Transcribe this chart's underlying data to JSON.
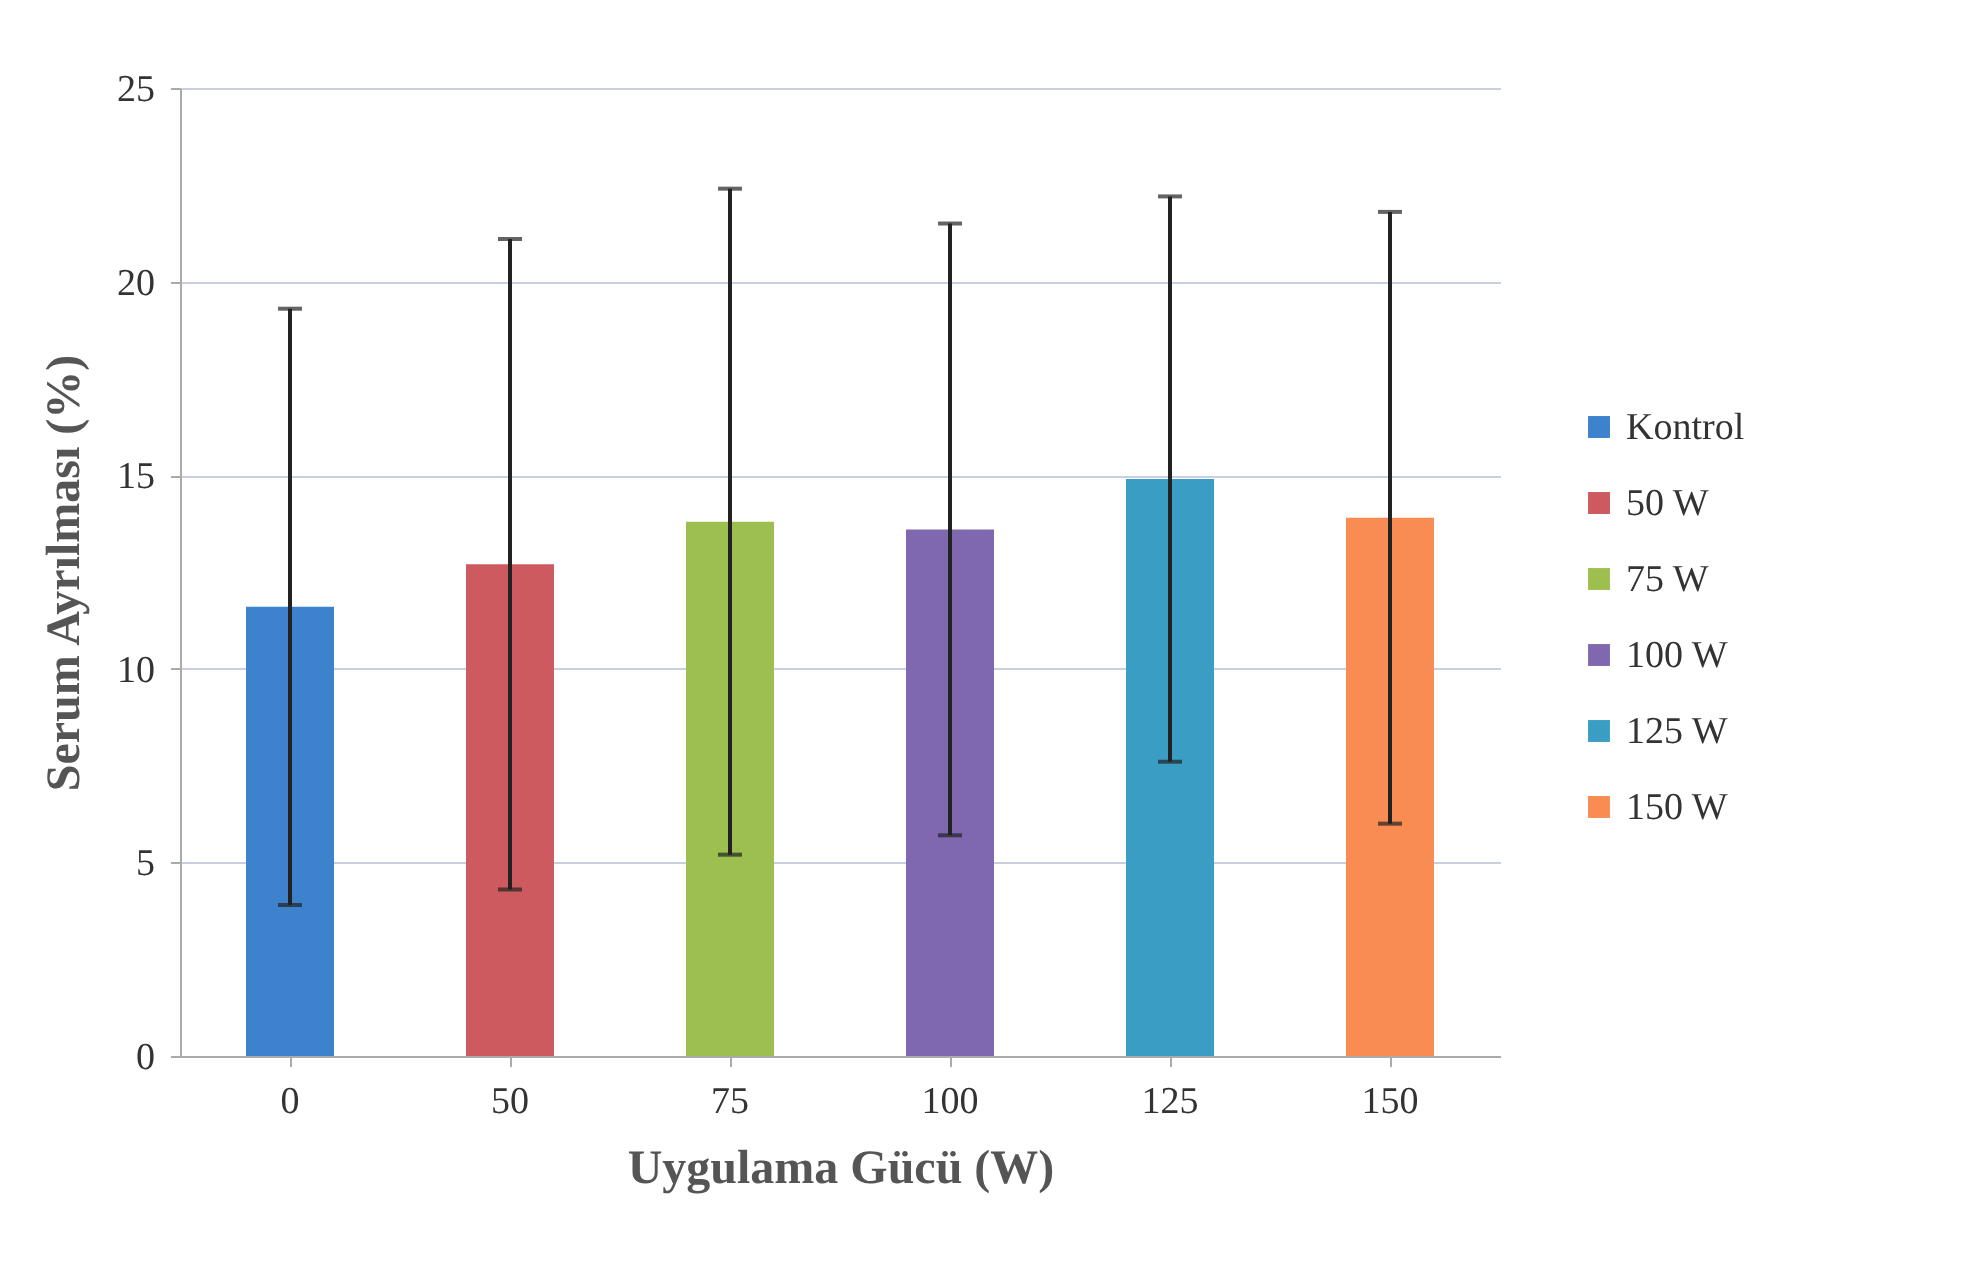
{
  "chart_data": {
    "type": "bar",
    "xlabel": "Uygulama Gücü (W)",
    "ylabel": "Serum Ayrılması (%)",
    "categories": [
      "0",
      "50",
      "75",
      "100",
      "125",
      "150"
    ],
    "series": [
      {
        "name": "Kontrol",
        "color": "#3c82cc",
        "values": [
          11.6,
          null,
          null,
          null,
          null,
          null
        ],
        "errors": [
          7.7,
          null,
          null,
          null,
          null,
          null
        ]
      },
      {
        "name": "50 W",
        "color": "#cc5a5e",
        "values": [
          null,
          12.7,
          null,
          null,
          null,
          null
        ],
        "errors": [
          null,
          8.4,
          null,
          null,
          null,
          null
        ]
      },
      {
        "name": "75 W",
        "color": "#9cbf50",
        "values": [
          null,
          null,
          13.8,
          null,
          null,
          null
        ],
        "errors": [
          null,
          null,
          8.6,
          null,
          null,
          null
        ]
      },
      {
        "name": "100 W",
        "color": "#8068b0",
        "values": [
          null,
          null,
          null,
          13.6,
          null,
          null
        ],
        "errors": [
          null,
          null,
          null,
          7.9,
          null,
          null
        ]
      },
      {
        "name": "125 W",
        "color": "#3a9ec4",
        "values": [
          null,
          null,
          null,
          null,
          14.9,
          null
        ],
        "errors": [
          null,
          null,
          null,
          null,
          7.3,
          null
        ]
      },
      {
        "name": "150 W",
        "color": "#f88c52",
        "values": [
          null,
          null,
          null,
          null,
          null,
          13.9
        ],
        "errors": [
          null,
          null,
          null,
          null,
          null,
          7.9
        ]
      }
    ],
    "ylim": [
      0,
      25
    ],
    "yticks": [
      0,
      5,
      10,
      15,
      20,
      25
    ],
    "grid": "y",
    "legend": "right"
  }
}
